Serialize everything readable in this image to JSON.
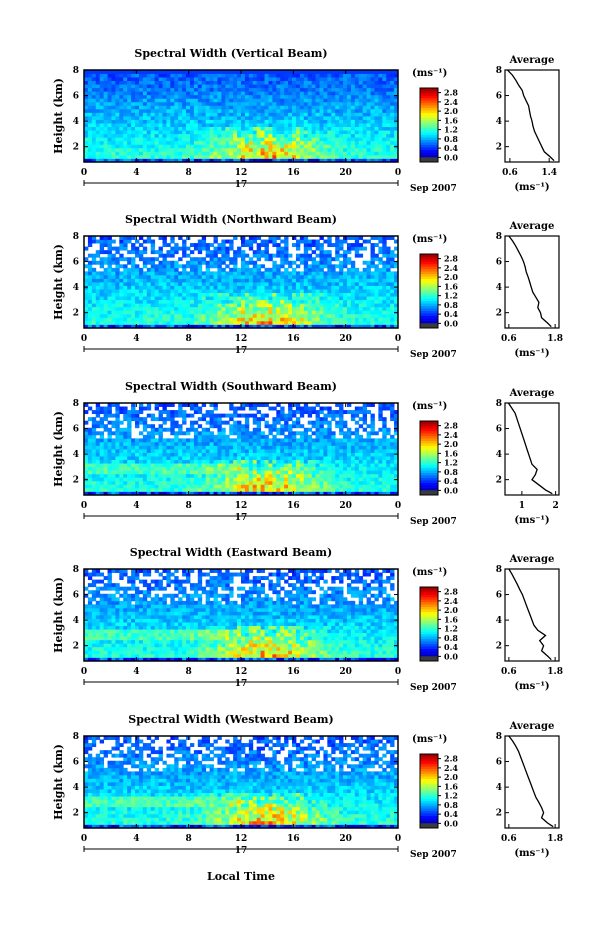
{
  "figure": {
    "xlabel": "Local Time",
    "date_label": "Sep 2007",
    "day_label": "17"
  },
  "chart_data": [
    {
      "type": "heatmap",
      "title": "Spectral Width (Vertical Beam)",
      "ylabel": "Height (km)",
      "xticks": [
        "0",
        "4",
        "8",
        "12",
        "16",
        "20",
        "0"
      ],
      "yticks": [
        "2",
        "4",
        "6",
        "8"
      ],
      "xlim": [
        0,
        24
      ],
      "ylim": [
        0.8,
        8
      ],
      "colorbar": {
        "unit": "(ms⁻¹)",
        "ticks": [
          "2.8",
          "2.4",
          "2.0",
          "1.6",
          "1.2",
          "0.8",
          "0.4",
          "0.0"
        ],
        "range": [
          0,
          2.8
        ]
      },
      "average": {
        "title": "Average",
        "xlabel": "(ms⁻¹)",
        "xticks": [
          "0.6",
          "1.4"
        ],
        "yticks": [
          "2",
          "4",
          "6",
          "8"
        ],
        "xlim": [
          0.5,
          1.6
        ],
        "ylim": [
          0.8,
          8
        ],
        "height": [
          8.0,
          7.6,
          7.2,
          6.8,
          6.4,
          6.0,
          5.6,
          5.2,
          4.8,
          4.4,
          4.0,
          3.6,
          3.2,
          2.8,
          2.4,
          2.0,
          1.6,
          1.2,
          0.9
        ],
        "value": [
          0.55,
          0.65,
          0.72,
          0.78,
          0.85,
          0.88,
          0.93,
          0.98,
          1.0,
          1.02,
          1.05,
          1.07,
          1.1,
          1.15,
          1.2,
          1.25,
          1.3,
          1.42,
          1.5
        ]
      }
    },
    {
      "type": "heatmap",
      "title": "Spectral Width (Northward Beam)",
      "ylabel": "Height (km)",
      "xticks": [
        "0",
        "4",
        "8",
        "12",
        "16",
        "20",
        "0"
      ],
      "yticks": [
        "2",
        "4",
        "6",
        "8"
      ],
      "xlim": [
        0,
        24
      ],
      "ylim": [
        0.8,
        8
      ],
      "colorbar": {
        "unit": "(ms⁻¹)",
        "ticks": [
          "2.8",
          "2.4",
          "2.0",
          "1.6",
          "1.2",
          "0.8",
          "0.4",
          "0.0"
        ],
        "range": [
          0,
          2.8
        ]
      },
      "average": {
        "title": "Average",
        "xlabel": "(ms⁻¹)",
        "xticks": [
          "0.6",
          "1.8"
        ],
        "yticks": [
          "2",
          "4",
          "6",
          "8"
        ],
        "xlim": [
          0.5,
          1.9
        ],
        "ylim": [
          0.8,
          8
        ],
        "height": [
          8.0,
          7.6,
          7.2,
          6.8,
          6.4,
          6.0,
          5.6,
          5.2,
          4.8,
          4.4,
          4.0,
          3.6,
          3.2,
          2.8,
          2.4,
          2.0,
          1.6,
          1.2,
          0.9
        ],
        "value": [
          0.6,
          0.7,
          0.78,
          0.85,
          0.92,
          0.98,
          1.02,
          1.05,
          1.1,
          1.14,
          1.18,
          1.22,
          1.3,
          1.38,
          1.35,
          1.42,
          1.45,
          1.6,
          1.7
        ]
      }
    },
    {
      "type": "heatmap",
      "title": "Spectral Width (Southward Beam)",
      "ylabel": "Height (km)",
      "xticks": [
        "0",
        "4",
        "8",
        "12",
        "16",
        "20",
        "0"
      ],
      "yticks": [
        "2",
        "4",
        "6",
        "8"
      ],
      "xlim": [
        0,
        24
      ],
      "ylim": [
        0.8,
        8
      ],
      "colorbar": {
        "unit": "(ms⁻¹)",
        "ticks": [
          "2.8",
          "2.4",
          "2.0",
          "1.6",
          "1.2",
          "0.8",
          "0.4",
          "0.0"
        ],
        "range": [
          0,
          2.8
        ]
      },
      "average": {
        "title": "Average",
        "xlabel": "(ms⁻¹)",
        "xticks": [
          "1",
          "2"
        ],
        "yticks": [
          "2",
          "4",
          "6",
          "8"
        ],
        "xlim": [
          0.5,
          2.1
        ],
        "ylim": [
          0.8,
          8
        ],
        "height": [
          8.0,
          7.6,
          7.2,
          6.8,
          6.4,
          6.0,
          5.6,
          5.2,
          4.8,
          4.4,
          4.0,
          3.6,
          3.2,
          2.8,
          2.4,
          2.0,
          1.6,
          1.2,
          0.9
        ],
        "value": [
          0.6,
          0.7,
          0.8,
          0.85,
          0.9,
          0.95,
          1.0,
          1.05,
          1.1,
          1.15,
          1.2,
          1.25,
          1.3,
          1.45,
          1.4,
          1.3,
          1.5,
          1.7,
          1.9
        ]
      }
    },
    {
      "type": "heatmap",
      "title": "Spectral Width (Eastward Beam)",
      "ylabel": "Height (km)",
      "xticks": [
        "0",
        "4",
        "8",
        "12",
        "16",
        "20",
        "0"
      ],
      "yticks": [
        "2",
        "4",
        "6",
        "8"
      ],
      "xlim": [
        0,
        24
      ],
      "ylim": [
        0.8,
        8
      ],
      "colorbar": {
        "unit": "(ms⁻¹)",
        "ticks": [
          "2.8",
          "2.4",
          "2.0",
          "1.6",
          "1.2",
          "0.8",
          "0.4",
          "0.0"
        ],
        "range": [
          0,
          2.8
        ]
      },
      "average": {
        "title": "Average",
        "xlabel": "(ms⁻¹)",
        "xticks": [
          "0.6",
          "1.8"
        ],
        "yticks": [
          "2",
          "4",
          "6",
          "8"
        ],
        "xlim": [
          0.5,
          1.9
        ],
        "ylim": [
          0.8,
          8
        ],
        "height": [
          8.0,
          7.6,
          7.2,
          6.8,
          6.4,
          6.0,
          5.6,
          5.2,
          4.8,
          4.4,
          4.0,
          3.6,
          3.2,
          2.8,
          2.4,
          2.0,
          1.6,
          1.2,
          0.9
        ],
        "value": [
          0.6,
          0.68,
          0.75,
          0.82,
          0.88,
          0.95,
          1.0,
          1.05,
          1.1,
          1.15,
          1.2,
          1.25,
          1.35,
          1.55,
          1.4,
          1.5,
          1.45,
          1.6,
          1.7
        ]
      }
    },
    {
      "type": "heatmap",
      "title": "Spectral Width (Westward Beam)",
      "ylabel": "Height (km)",
      "xticks": [
        "0",
        "4",
        "8",
        "12",
        "16",
        "20",
        "0"
      ],
      "yticks": [
        "2",
        "4",
        "6",
        "8"
      ],
      "xlim": [
        0,
        24
      ],
      "ylim": [
        0.8,
        8
      ],
      "colorbar": {
        "unit": "(ms⁻¹)",
        "ticks": [
          "2.8",
          "2.4",
          "2.0",
          "1.6",
          "1.2",
          "0.8",
          "0.4",
          "0.0"
        ],
        "range": [
          0,
          2.8
        ]
      },
      "average": {
        "title": "Average",
        "xlabel": "(ms⁻¹)",
        "xticks": [
          "0.6",
          "1.8"
        ],
        "yticks": [
          "2",
          "4",
          "6",
          "8"
        ],
        "xlim": [
          0.5,
          1.9
        ],
        "ylim": [
          0.8,
          8
        ],
        "height": [
          8.0,
          7.6,
          7.2,
          6.8,
          6.4,
          6.0,
          5.6,
          5.2,
          4.8,
          4.4,
          4.0,
          3.6,
          3.2,
          2.8,
          2.4,
          2.0,
          1.6,
          1.2,
          0.9
        ],
        "value": [
          0.6,
          0.7,
          0.78,
          0.85,
          0.9,
          0.95,
          1.0,
          1.05,
          1.1,
          1.15,
          1.2,
          1.25,
          1.3,
          1.38,
          1.45,
          1.5,
          1.45,
          1.6,
          1.75
        ]
      }
    }
  ]
}
